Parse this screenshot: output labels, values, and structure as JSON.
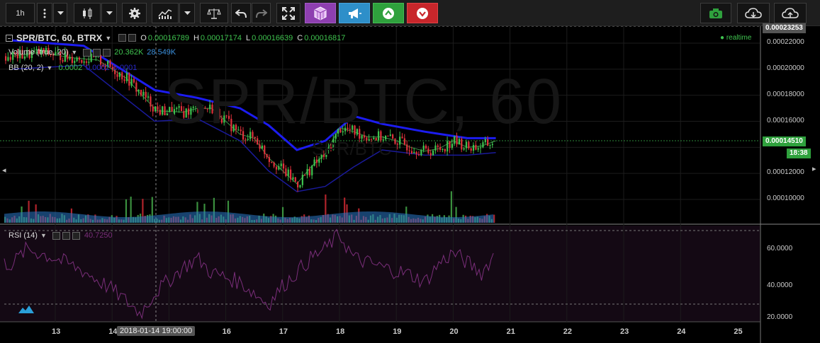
{
  "toolbar": {
    "interval": "1h",
    "icons": [
      "more-vertical-icon",
      "dropdown-icon",
      "candles-icon",
      "chart-type-dropdown-icon",
      "gear-icon",
      "indicators-icon",
      "indicators-dropdown-icon",
      "compare-scales-icon",
      "undo-icon",
      "redo-icon",
      "fullscreen-icon",
      "cube-icon",
      "megaphone-icon",
      "arrow-up-circle-icon",
      "arrow-down-circle-icon",
      "camera-icon",
      "cloud-download-icon",
      "cloud-upload-icon"
    ]
  },
  "legend": {
    "symbol": "SPR/BTC, 60, BTRX",
    "open_key": "O",
    "open": "0.00016789",
    "high_key": "H",
    "high": "0.00017174",
    "low_key": "L",
    "low": "0.00016639",
    "close_key": "C",
    "close": "0.00016817"
  },
  "volume": {
    "label": "Volume (true, 20)",
    "v1": "20.362K",
    "v2": "28.549K"
  },
  "bb": {
    "label": "BB (20, 2)",
    "v1": "0.0002",
    "v2": "0.0002",
    "v3": "0.0001"
  },
  "rsi": {
    "label": "RSI (14)",
    "value": "40.7250"
  },
  "watermark": {
    "symbol": "SPR/BTC, 60",
    "sub": "SPR/BTC"
  },
  "realtime": "realtime",
  "price_axis": {
    "top": "0.00023253",
    "labels": [
      "0.00022000",
      "0.00020000",
      "0.00018000",
      "0.00016000",
      "0.00014000",
      "0.00012000",
      "0.00010000"
    ],
    "current_price": "0.00014510",
    "countdown": "18:38"
  },
  "rsi_axis": {
    "labels": [
      "60.0000",
      "40.0000",
      "20.0000"
    ]
  },
  "time_axis": {
    "labels": [
      "13",
      "14",
      "16",
      "17",
      "18",
      "19",
      "20",
      "21",
      "22",
      "23",
      "24",
      "25"
    ],
    "crosshair_date": "2018-01-14 19:00:00"
  },
  "colors": {
    "up": "#3fc34f",
    "down": "#e0323c",
    "bb_upper": "#1c1cf0",
    "bb_basis": "#3d8f46",
    "rsi": "#7a2e7a",
    "volume_ma": "#2a78c8"
  },
  "chart_data": {
    "type": "candlestick",
    "symbol": "SPR/BTC",
    "interval": "60",
    "exchange": "BTRX",
    "x_range": [
      "2018-01-12",
      "2018-01-25"
    ],
    "ylim": [
      8e-05,
      0.00023253
    ],
    "close_series": [
      {
        "x": "2018-01-12 06:00",
        "y": 0.00021
      },
      {
        "x": "2018-01-12 18:00",
        "y": 0.000213
      },
      {
        "x": "2018-01-13 06:00",
        "y": 0.000209
      },
      {
        "x": "2018-01-13 18:00",
        "y": 0.000207
      },
      {
        "x": "2018-01-14 06:00",
        "y": 0.000193
      },
      {
        "x": "2018-01-14 12:00",
        "y": 0.000181
      },
      {
        "x": "2018-01-14 19:00",
        "y": 0.000168
      },
      {
        "x": "2018-01-15 06:00",
        "y": 0.000167
      },
      {
        "x": "2018-01-15 12:00",
        "y": 0.00017
      },
      {
        "x": "2018-01-15 18:00",
        "y": 0.00017
      },
      {
        "x": "2018-01-16 00:00",
        "y": 0.00016
      },
      {
        "x": "2018-01-16 06:00",
        "y": 0.00015
      },
      {
        "x": "2018-01-16 12:00",
        "y": 0.000147
      },
      {
        "x": "2018-01-16 18:00",
        "y": 0.000132
      },
      {
        "x": "2018-01-17 00:00",
        "y": 0.000122
      },
      {
        "x": "2018-01-17 06:00",
        "y": 0.000112
      },
      {
        "x": "2018-01-17 12:00",
        "y": 0.000125
      },
      {
        "x": "2018-01-17 18:00",
        "y": 0.000135
      },
      {
        "x": "2018-01-18 00:00",
        "y": 0.000155
      },
      {
        "x": "2018-01-18 06:00",
        "y": 0.000152
      },
      {
        "x": "2018-01-18 12:00",
        "y": 0.000148
      },
      {
        "x": "2018-01-18 18:00",
        "y": 0.000148
      },
      {
        "x": "2018-01-19 00:00",
        "y": 0.000145
      },
      {
        "x": "2018-01-19 06:00",
        "y": 0.00014
      },
      {
        "x": "2018-01-19 12:00",
        "y": 0.000137
      },
      {
        "x": "2018-01-19 18:00",
        "y": 0.000139
      },
      {
        "x": "2018-01-20 00:00",
        "y": 0.000145
      },
      {
        "x": "2018-01-20 06:00",
        "y": 0.00014
      },
      {
        "x": "2018-01-20 12:00",
        "y": 0.000141
      },
      {
        "x": "2018-01-20 18:00",
        "y": 0.000145
      }
    ],
    "bb_upper": [
      {
        "x": "2018-01-12 06:00",
        "y": 0.000222
      },
      {
        "x": "2018-01-13 12:00",
        "y": 0.000218
      },
      {
        "x": "2018-01-14 18:00",
        "y": 0.000184
      },
      {
        "x": "2018-01-15 12:00",
        "y": 0.000178
      },
      {
        "x": "2018-01-16 06:00",
        "y": 0.00017
      },
      {
        "x": "2018-01-16 18:00",
        "y": 0.000157
      },
      {
        "x": "2018-01-17 06:00",
        "y": 0.000138
      },
      {
        "x": "2018-01-17 18:00",
        "y": 0.000145
      },
      {
        "x": "2018-01-18 06:00",
        "y": 0.000164
      },
      {
        "x": "2018-01-18 18:00",
        "y": 0.000158
      },
      {
        "x": "2018-01-19 12:00",
        "y": 0.000152
      },
      {
        "x": "2018-01-20 06:00",
        "y": 0.000147
      },
      {
        "x": "2018-01-20 18:00",
        "y": 0.000147
      }
    ],
    "bb_lower": [
      {
        "x": "2018-01-12 06:00",
        "y": 0.0002
      },
      {
        "x": "2018-01-13 12:00",
        "y": 0.000203
      },
      {
        "x": "2018-01-14 18:00",
        "y": 0.00016
      },
      {
        "x": "2018-01-15 12:00",
        "y": 0.000162
      },
      {
        "x": "2018-01-16 06:00",
        "y": 0.000145
      },
      {
        "x": "2018-01-16 18:00",
        "y": 0.000122
      },
      {
        "x": "2018-01-17 06:00",
        "y": 0.000106
      },
      {
        "x": "2018-01-17 18:00",
        "y": 0.00011
      },
      {
        "x": "2018-01-18 06:00",
        "y": 0.000125
      },
      {
        "x": "2018-01-18 18:00",
        "y": 0.000138
      },
      {
        "x": "2018-01-19 12:00",
        "y": 0.000134
      },
      {
        "x": "2018-01-20 06:00",
        "y": 0.000134
      },
      {
        "x": "2018-01-20 18:00",
        "y": 0.000136
      }
    ],
    "rsi_ylim": [
      20,
      70
    ],
    "rsi_levels": [
      70,
      30
    ],
    "rsi_series": [
      {
        "x": "2018-01-12 06:00",
        "y": 52
      },
      {
        "x": "2018-01-12 12:00",
        "y": 60
      },
      {
        "x": "2018-01-13 00:00",
        "y": 55
      },
      {
        "x": "2018-01-13 12:00",
        "y": 48
      },
      {
        "x": "2018-01-14 00:00",
        "y": 38
      },
      {
        "x": "2018-01-14 12:00",
        "y": 25
      },
      {
        "x": "2018-01-14 18:00",
        "y": 36
      },
      {
        "x": "2018-01-15 06:00",
        "y": 50
      },
      {
        "x": "2018-01-15 12:00",
        "y": 55
      },
      {
        "x": "2018-01-15 18:00",
        "y": 47
      },
      {
        "x": "2018-01-16 06:00",
        "y": 42
      },
      {
        "x": "2018-01-16 18:00",
        "y": 30
      },
      {
        "x": "2018-01-17 00:00",
        "y": 40
      },
      {
        "x": "2018-01-17 12:00",
        "y": 55
      },
      {
        "x": "2018-01-17 18:00",
        "y": 60
      },
      {
        "x": "2018-01-18 00:00",
        "y": 68
      },
      {
        "x": "2018-01-18 06:00",
        "y": 55
      },
      {
        "x": "2018-01-18 18:00",
        "y": 50
      },
      {
        "x": "2018-01-19 06:00",
        "y": 46
      },
      {
        "x": "2018-01-19 12:00",
        "y": 42
      },
      {
        "x": "2018-01-19 18:00",
        "y": 52
      },
      {
        "x": "2018-01-20 00:00",
        "y": 58
      },
      {
        "x": "2018-01-20 12:00",
        "y": 47
      },
      {
        "x": "2018-01-20 18:00",
        "y": 58
      }
    ]
  }
}
